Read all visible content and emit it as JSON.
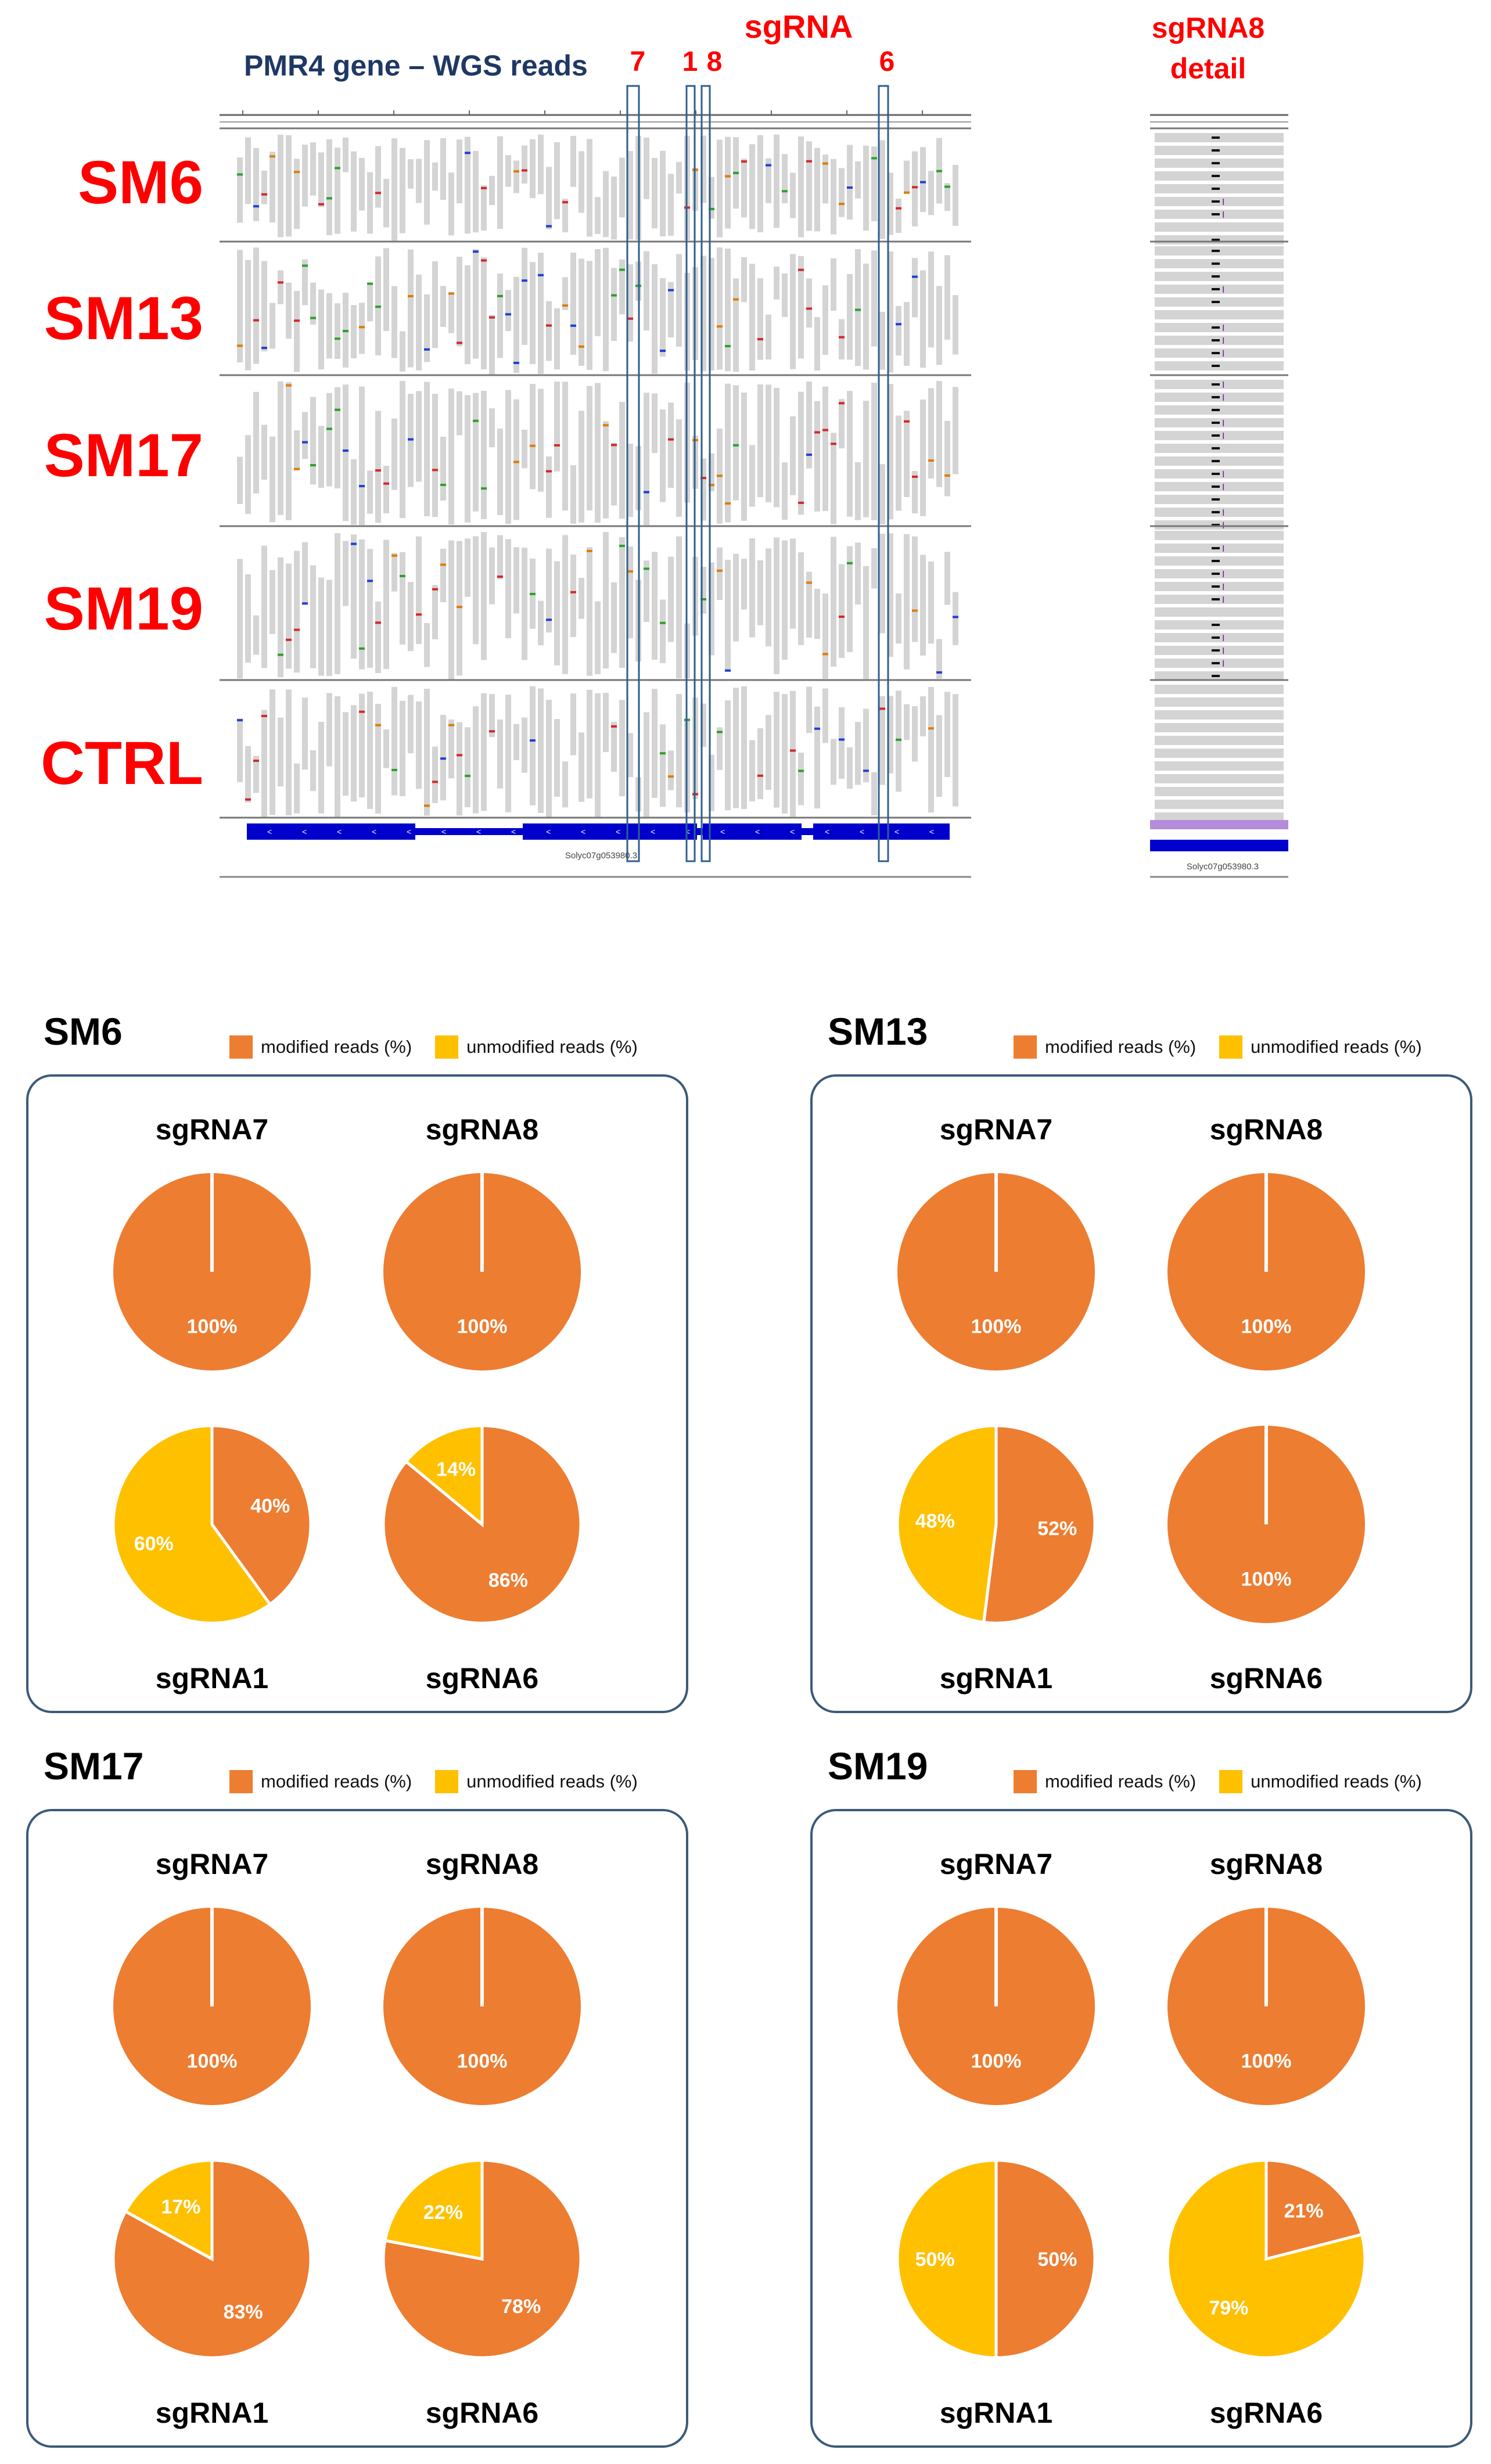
{
  "colors": {
    "modified": "#ed7d31",
    "unmodified": "#ffc000",
    "label_red": "#ff0000",
    "title_navy": "#1f3864",
    "panel_border": "#3c5a78",
    "gene_blue": "#0000cc"
  },
  "browser": {
    "title": "PMR4 gene – WGS reads",
    "sgrna_heading": "sgRNA",
    "sgrna_numbers": [
      "7",
      "1",
      "8",
      "6"
    ],
    "detail_title_line1": "sgRNA8",
    "detail_title_line2": "detail",
    "tracks": [
      "SM6",
      "SM13",
      "SM17",
      "SM19",
      "CTRL"
    ],
    "gene_name": "Solyc07g053980.3",
    "detail_gene_name": "Solyc07g053980.3"
  },
  "chart_data": [
    {
      "type": "pie",
      "title": "SM6",
      "legend": [
        "modified reads (%)",
        "unmodified reads (%)"
      ],
      "charts": [
        {
          "name": "sgRNA7",
          "modified": 100,
          "unmodified": 0,
          "labels": [
            "100%"
          ]
        },
        {
          "name": "sgRNA8",
          "modified": 100,
          "unmodified": 0,
          "labels": [
            "100%"
          ]
        },
        {
          "name": "sgRNA1",
          "modified": 40,
          "unmodified": 60,
          "labels": [
            "40%",
            "60%"
          ]
        },
        {
          "name": "sgRNA6",
          "modified": 86,
          "unmodified": 14,
          "labels": [
            "86%",
            "14%"
          ]
        }
      ]
    },
    {
      "type": "pie",
      "title": "SM13",
      "legend": [
        "modified reads (%)",
        "unmodified reads (%)"
      ],
      "charts": [
        {
          "name": "sgRNA7",
          "modified": 100,
          "unmodified": 0,
          "labels": [
            "100%"
          ]
        },
        {
          "name": "sgRNA8",
          "modified": 100,
          "unmodified": 0,
          "labels": [
            "100%"
          ]
        },
        {
          "name": "sgRNA1",
          "modified": 52,
          "unmodified": 48,
          "labels": [
            "52%",
            "48%"
          ]
        },
        {
          "name": "sgRNA6",
          "modified": 100,
          "unmodified": 0,
          "labels": [
            "100%"
          ]
        }
      ]
    },
    {
      "type": "pie",
      "title": "SM17",
      "legend": [
        "modified reads (%)",
        "unmodified reads (%)"
      ],
      "charts": [
        {
          "name": "sgRNA7",
          "modified": 100,
          "unmodified": 0,
          "labels": [
            "100%"
          ]
        },
        {
          "name": "sgRNA8",
          "modified": 100,
          "unmodified": 0,
          "labels": [
            "100%"
          ]
        },
        {
          "name": "sgRNA1",
          "modified": 83,
          "unmodified": 17,
          "labels": [
            "83%",
            "17%"
          ]
        },
        {
          "name": "sgRNA6",
          "modified": 78,
          "unmodified": 22,
          "labels": [
            "78%",
            "22%"
          ]
        }
      ]
    },
    {
      "type": "pie",
      "title": "SM19",
      "legend": [
        "modified reads (%)",
        "unmodified reads (%)"
      ],
      "charts": [
        {
          "name": "sgRNA7",
          "modified": 100,
          "unmodified": 0,
          "labels": [
            "100%"
          ]
        },
        {
          "name": "sgRNA8",
          "modified": 100,
          "unmodified": 0,
          "labels": [
            "100%"
          ]
        },
        {
          "name": "sgRNA1",
          "modified": 50,
          "unmodified": 50,
          "labels": [
            "50%",
            "50%"
          ]
        },
        {
          "name": "sgRNA6",
          "modified": 21,
          "unmodified": 79,
          "labels": [
            "21%",
            "79%"
          ]
        }
      ]
    }
  ]
}
